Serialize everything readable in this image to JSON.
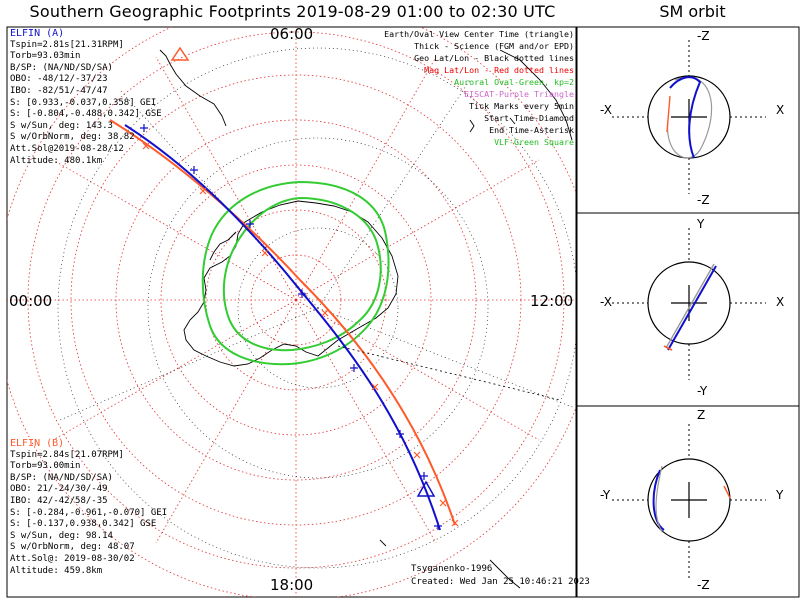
{
  "title": "Southern Geographic Footprints 2019-08-29 01:00 to 02:30 UTC",
  "sm_title": "SM orbit",
  "mlt_labels": {
    "top": "06:00",
    "left": "00:00",
    "right": "12:00",
    "bottom": "18:00"
  },
  "elfin_a": {
    "name": "ELFIN (A)",
    "color": "#0000cc",
    "lines": [
      "Tspin=2.81s[21.31RPM]",
      "Torb=93.03min",
      "B/SP: (NA/ND/SD/SA)",
      "OBO: -48/12/-37/23",
      "IBO: -82/51/-47/47",
      "S: [0.933,-0.037,0.358] GEI",
      "S: [-0.804,-0.488,0.342] GSE",
      "S w/Sun, deg: 143.3",
      "S w/OrbNorm, deg: 38.82",
      "Att.Sol@2019-08-28/12",
      "Altitude: 480.1km"
    ]
  },
  "elfin_b": {
    "name": "ELFIN (B)",
    "color": "#ff5a2a",
    "lines": [
      "Tspin=2.84s[21.07RPM]",
      "Torb=93.00min",
      "B/SP: (NA/ND/SD/SA)",
      "OBO: 21/-24/30/-49",
      "IBO: 42/-42/58/-35",
      "S: [-0.284,-0.961,-0.070] GEI",
      "S: [-0.137,0.938,0.342] GSE",
      "S w/Sun, deg: 98.14",
      "S w/OrbNorm, deg: 48.07",
      "Att.Sol@: 2019-08-30/02",
      "Altitude: 459.8km"
    ]
  },
  "legend": [
    {
      "text": "Earth/Oval View Center Time (triangle)",
      "color": "#000000"
    },
    {
      "text": "Thick - Science (FGM and/or EPD)",
      "color": "#000000"
    },
    {
      "text": "Geo Lat/Lon - Black dotted lines",
      "color": "#000000"
    },
    {
      "text": "Mag Lat/Lon - Red dotted lines",
      "color": "#ee0000"
    },
    {
      "text": "Auroral Oval-Green, kp=2",
      "color": "#22bb22"
    },
    {
      "text": "EISCAT-Purple Triangle",
      "color": "#cc66cc"
    },
    {
      "text": "Tick Marks every 5min",
      "color": "#000000"
    },
    {
      "text": "Start Time-Diamond",
      "color": "#000000"
    },
    {
      "text": "End Time-Asterisk",
      "color": "#000000"
    },
    {
      "text": "VLF-Green Square",
      "color": "#22bb22"
    }
  ],
  "credits": {
    "model": "Tsyganenko-1996",
    "created": "Created: Wed Jan 25 10:46:21 2023"
  },
  "sm_panels": [
    {
      "top": "-Z",
      "bottom": "-Z",
      "left": "-X",
      "right": "X"
    },
    {
      "top": "Y",
      "bottom": "-Y",
      "left": "-X",
      "right": "X"
    },
    {
      "top": "Z",
      "bottom": "-Z",
      "left": "-Y",
      "right": "Y"
    }
  ]
}
